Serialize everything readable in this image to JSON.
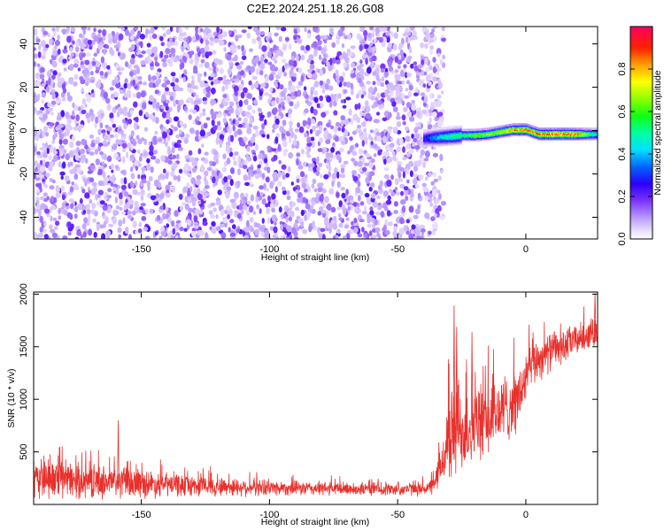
{
  "figure_title": "C2E2.2024.251.18.26.G08",
  "chart_data": [
    {
      "type": "heatmap",
      "title": "C2E2.2024.251.18.26.G08",
      "xlabel": "Height of straight line (km)",
      "ylabel": "Frequency (Hz)",
      "xlim": [
        -192,
        28
      ],
      "ylim": [
        -50,
        48
      ],
      "x_ticks": [
        -150,
        -100,
        -50,
        0
      ],
      "y_ticks": [
        -40,
        -20,
        0,
        20,
        40
      ],
      "colorbar": {
        "label": "Normalized spectral amplitude",
        "range": [
          0,
          1
        ],
        "ticks": [
          0.0,
          0.2,
          0.4,
          0.6,
          0.8
        ],
        "tick_labels": [
          "0.0",
          "0.2",
          "0.4",
          "0.6",
          "0.8"
        ]
      },
      "noise_region": {
        "x_range": [
          -192,
          -36
        ],
        "freq_range": [
          -50,
          48
        ],
        "typical_amplitude": 0.1
      },
      "signal_track": {
        "x": [
          -40,
          -35,
          -30,
          -25,
          -20,
          -15,
          -10,
          -5,
          0,
          5,
          10,
          15,
          20,
          25,
          28
        ],
        "frequency": [
          -3.5,
          -3,
          -2.5,
          -2,
          -2,
          -1.5,
          -0.5,
          0.5,
          0.5,
          -1.5,
          -1.5,
          -1.5,
          -1.5,
          -1.5,
          -1.5
        ],
        "peak_amplitude": [
          0.3,
          0.45,
          0.55,
          0.6,
          0.7,
          0.72,
          0.8,
          0.9,
          0.95,
          0.95,
          0.95,
          0.95,
          0.95,
          0.6,
          0.55
        ]
      }
    },
    {
      "type": "line",
      "title": "",
      "xlabel": "Height of straight line (km)",
      "ylabel": "SNR (10 * v/v)",
      "xlim": [
        -192,
        28
      ],
      "ylim": [
        0,
        2020
      ],
      "x_ticks": [
        -150,
        -100,
        -50,
        0
      ],
      "y_ticks": [
        500,
        1000,
        1500,
        2000
      ],
      "series": [
        {
          "name": "SNR",
          "color": "#e8302c",
          "x": [
            -192,
            -180,
            -170,
            -160,
            -150,
            -140,
            -130,
            -120,
            -110,
            -100,
            -90,
            -80,
            -70,
            -60,
            -50,
            -40,
            -36,
            -33,
            -30,
            -27,
            -24,
            -21,
            -18,
            -15,
            -12,
            -9,
            -6,
            -3,
            0,
            3,
            6,
            9,
            12,
            15,
            18,
            21,
            24,
            28
          ],
          "mean": [
            240,
            230,
            220,
            210,
            200,
            190,
            180,
            170,
            165,
            160,
            155,
            150,
            148,
            145,
            145,
            150,
            170,
            380,
            620,
            700,
            720,
            750,
            780,
            800,
            850,
            900,
            950,
            1000,
            1200,
            1350,
            1400,
            1450,
            1480,
            1500,
            1550,
            1580,
            1620,
            1650
          ],
          "spread": [
            220,
            200,
            190,
            180,
            160,
            140,
            120,
            110,
            100,
            90,
            80,
            80,
            75,
            70,
            70,
            80,
            90,
            250,
            500,
            550,
            500,
            450,
            430,
            420,
            420,
            400,
            380,
            350,
            300,
            260,
            240,
            220,
            200,
            200,
            180,
            170,
            170,
            160
          ],
          "peaks": [
            {
              "x": -159,
              "y": 800
            },
            {
              "x": -28,
              "y": 1890
            },
            {
              "x": -27,
              "y": 1690
            },
            {
              "x": -21,
              "y": 1640
            },
            {
              "x": 27,
              "y": 2010
            }
          ]
        }
      ]
    }
  ]
}
